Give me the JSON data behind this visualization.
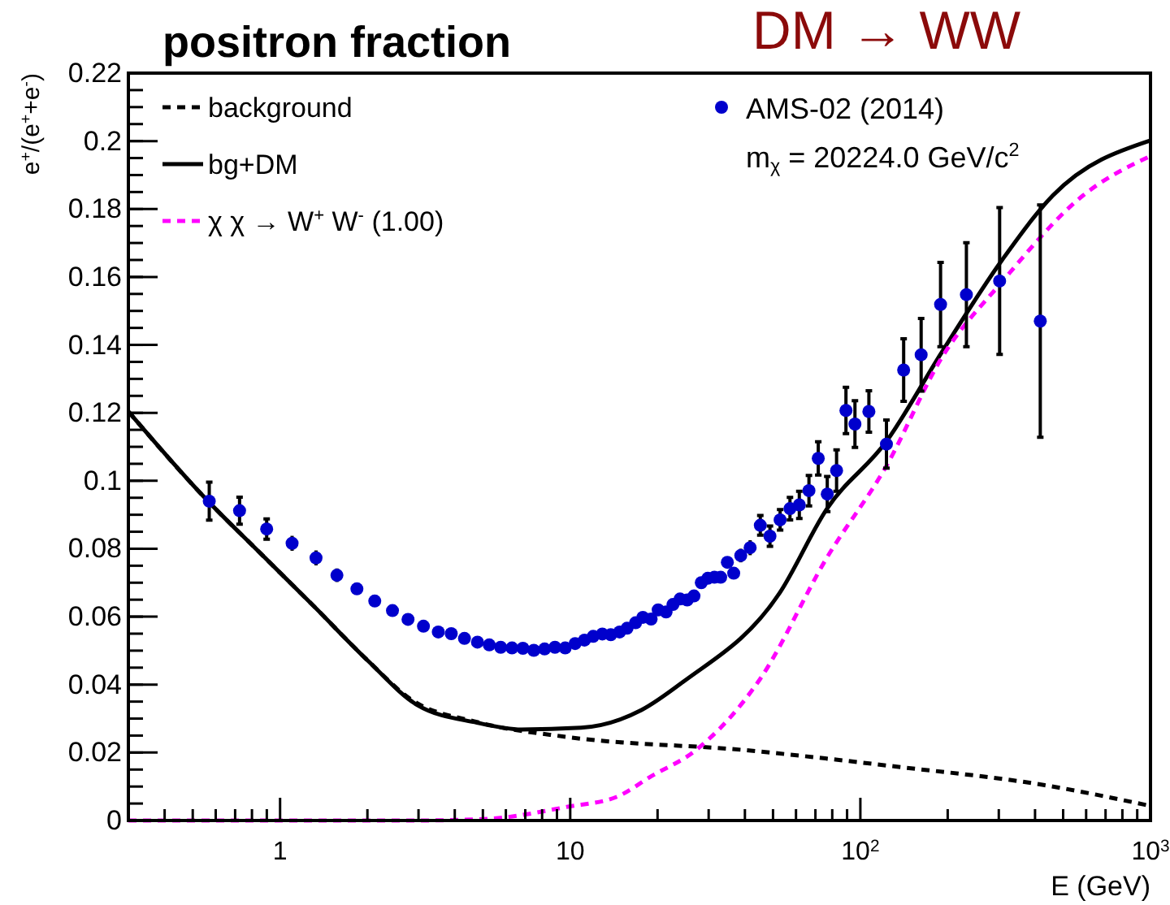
{
  "chart_data": {
    "type": "line",
    "title": "positron fraction",
    "subtitle": "DM → WW",
    "xlabel": "E (GeV)",
    "ylabel": "e$^{+}$/(e$^{+}$+e$^{-}$)",
    "log": "x",
    "xlim": [
      0.3,
      1000
    ],
    "ylim": [
      0,
      0.22
    ],
    "xticks": [
      {
        "value": 0.4,
        "label": null
      },
      {
        "value": 0.5,
        "label": null
      },
      {
        "value": 0.6,
        "label": null
      },
      {
        "value": 0.7,
        "label": null
      },
      {
        "value": 0.8,
        "label": null
      },
      {
        "value": 0.9,
        "label": null
      },
      1,
      {
        "value": 2,
        "label": null
      },
      {
        "value": 3,
        "label": null
      },
      {
        "value": 4,
        "label": null
      },
      {
        "value": 5,
        "label": null
      },
      {
        "value": 6,
        "label": null
      },
      {
        "value": 7,
        "label": null
      },
      {
        "value": 8,
        "label": null
      },
      {
        "value": 9,
        "label": null
      },
      10,
      {
        "value": 20,
        "label": null
      },
      {
        "value": 30,
        "label": null
      },
      {
        "value": 40,
        "label": null
      },
      {
        "value": 50,
        "label": null
      },
      {
        "value": 60,
        "label": null
      },
      {
        "value": 70,
        "label": null
      },
      {
        "value": 80,
        "label": null
      },
      {
        "value": 90,
        "label": null
      },
      {
        "value": 100,
        "label": "10$^{2}$"
      },
      {
        "value": 200,
        "label": null
      },
      {
        "value": 300,
        "label": null
      },
      {
        "value": 400,
        "label": null
      },
      {
        "value": 500,
        "label": null
      },
      {
        "value": 600,
        "label": null
      },
      {
        "value": 700,
        "label": null
      },
      {
        "value": 800,
        "label": null
      },
      {
        "value": 900,
        "label": null
      },
      {
        "value": 1000,
        "label": "10$^{3}$"
      }
    ],
    "yticks": [
      0,
      {
        "value": 0.005,
        "label": null
      },
      {
        "value": 0.01,
        "label": null
      },
      {
        "value": 0.015,
        "label": null
      },
      0.02,
      {
        "value": 0.025,
        "label": null
      },
      {
        "value": 0.03,
        "label": null
      },
      {
        "value": 0.035,
        "label": null
      },
      0.04,
      {
        "value": 0.045,
        "label": null
      },
      {
        "value": 0.05,
        "label": null
      },
      {
        "value": 0.055,
        "label": null
      },
      0.06,
      {
        "value": 0.065,
        "label": null
      },
      {
        "value": 0.07,
        "label": null
      },
      {
        "value": 0.075,
        "label": null
      },
      0.08,
      {
        "value": 0.085,
        "label": null
      },
      {
        "value": 0.09,
        "label": null
      },
      {
        "value": 0.095,
        "label": null
      },
      0.1,
      {
        "value": 0.105,
        "label": null
      },
      {
        "value": 0.11,
        "label": null
      },
      {
        "value": 0.115,
        "label": null
      },
      0.12,
      {
        "value": 0.125,
        "label": null
      },
      {
        "value": 0.13,
        "label": null
      },
      {
        "value": 0.135,
        "label": null
      },
      0.14,
      {
        "value": 0.145,
        "label": null
      },
      {
        "value": 0.15,
        "label": null
      },
      {
        "value": 0.155,
        "label": null
      },
      0.16,
      {
        "value": 0.165,
        "label": null
      },
      {
        "value": 0.17,
        "label": null
      },
      {
        "value": 0.175,
        "label": null
      },
      0.18,
      {
        "value": 0.185,
        "label": null
      },
      {
        "value": 0.19,
        "label": null
      },
      {
        "value": 0.195,
        "label": null
      },
      0.2,
      {
        "value": 0.205,
        "label": null
      },
      {
        "value": 0.21,
        "label": null
      },
      {
        "value": 0.215,
        "label": null
      },
      0.22
    ],
    "grid": false,
    "legend": "top",
    "annotations": [
      "m$_{χ}$ = 20224.0 GeV/c$^{2}$"
    ],
    "series": [
      {
        "name": "background",
        "type": "line",
        "line_style": "dashed",
        "color": "#000000",
        "x": [
          0.3,
          0.553,
          0.85,
          1.31,
          2.01,
          2.82,
          4.77,
          9.73,
          40.2,
          132,
          432,
          1000
        ],
        "values": [
          0.1204,
          0.0948,
          0.0789,
          0.063,
          0.047,
          0.0357,
          0.029,
          0.0246,
          0.0207,
          0.0159,
          0.0104,
          0.0043
        ]
      },
      {
        "name": "bg+DM",
        "type": "line",
        "line_style": "solid",
        "color": "#000000",
        "x": [
          0.3,
          0.553,
          0.85,
          1.31,
          2.01,
          2.97,
          4.77,
          6.79,
          10.9,
          17.6,
          24.4,
          52.7,
          76.6,
          123,
          191,
          308,
          461,
          1000
        ],
        "values": [
          0.1204,
          0.0948,
          0.0789,
          0.063,
          0.047,
          0.034,
          0.0288,
          0.0268,
          0.0273,
          0.0325,
          0.0407,
          0.067,
          0.0917,
          0.1116,
          0.1379,
          0.165,
          0.184,
          0.2002
        ]
      },
      {
        "name": "χ χ → W$^{+}$ W$^{-}$ (1.00)",
        "type": "line",
        "line_style": "dashed",
        "color": "#ff00ff",
        "x": [
          0.3,
          3,
          5.2,
          9.73,
          14.5,
          19,
          27,
          45,
          76.6,
          123,
          191,
          308,
          586,
          1000
        ],
        "values": [
          0,
          0,
          0.0005,
          0.004,
          0.007,
          0.013,
          0.0206,
          0.0415,
          0.0773,
          0.1044,
          0.1363,
          0.1586,
          0.184,
          0.1956
        ]
      },
      {
        "name": "AMS-02 (2014)",
        "type": "scatter",
        "marker": "circle",
        "color": "#0000cc",
        "x": [
          0.57,
          0.725,
          0.899,
          1.1,
          1.33,
          1.57,
          1.84,
          2.12,
          2.44,
          2.76,
          3.12,
          3.51,
          3.89,
          4.32,
          4.79,
          5.26,
          5.76,
          6.3,
          6.87,
          7.49,
          8.16,
          8.86,
          9.61,
          10.4,
          11.2,
          12.0,
          12.9,
          13.8,
          14.8,
          15.7,
          16.8,
          17.8,
          19.0,
          20.1,
          21.4,
          22.6,
          23.9,
          25.3,
          26.7,
          28.3,
          29.8,
          31.4,
          33.0,
          34.8,
          36.6,
          38.7,
          41.7,
          45.2,
          48.8,
          52.9,
          57.2,
          61.6,
          66.5,
          71.6,
          76.9,
          82.8,
          89.2,
          95.8,
          107,
          123,
          141,
          162,
          189,
          232,
          302,
          417
        ],
        "values": [
          0.094,
          0.0912,
          0.0858,
          0.0816,
          0.0773,
          0.0722,
          0.0682,
          0.0646,
          0.0618,
          0.0592,
          0.0572,
          0.0555,
          0.055,
          0.0536,
          0.0525,
          0.0517,
          0.051,
          0.0508,
          0.0507,
          0.0501,
          0.0505,
          0.051,
          0.0508,
          0.0521,
          0.0531,
          0.0542,
          0.0549,
          0.0547,
          0.0555,
          0.0566,
          0.0582,
          0.0598,
          0.0593,
          0.062,
          0.0614,
          0.0636,
          0.0652,
          0.0649,
          0.0661,
          0.07,
          0.0713,
          0.0716,
          0.0716,
          0.076,
          0.0728,
          0.078,
          0.0803,
          0.0869,
          0.0837,
          0.0885,
          0.0918,
          0.0929,
          0.0971,
          0.1066,
          0.0961,
          0.103,
          0.1207,
          0.1167,
          0.1204,
          0.1108,
          0.1326,
          0.1371,
          0.1519,
          0.1548,
          0.1588,
          0.147
        ],
        "errors": [
          0.0056,
          0.004,
          0.003,
          0.0022,
          0.0022,
          0.002,
          null,
          null,
          null,
          null,
          null,
          null,
          null,
          null,
          null,
          null,
          null,
          null,
          null,
          null,
          null,
          null,
          null,
          null,
          null,
          null,
          null,
          null,
          null,
          null,
          null,
          null,
          null,
          null,
          null,
          null,
          null,
          null,
          null,
          null,
          null,
          null,
          null,
          null,
          null,
          0.002,
          0.0022,
          0.0029,
          0.003,
          0.003,
          0.0033,
          0.004,
          0.0045,
          0.0049,
          0.0052,
          0.0061,
          0.0068,
          0.0069,
          0.0061,
          0.0071,
          0.0092,
          0.0107,
          0.0124,
          0.0153,
          0.0216,
          0.0342
        ]
      }
    ]
  }
}
